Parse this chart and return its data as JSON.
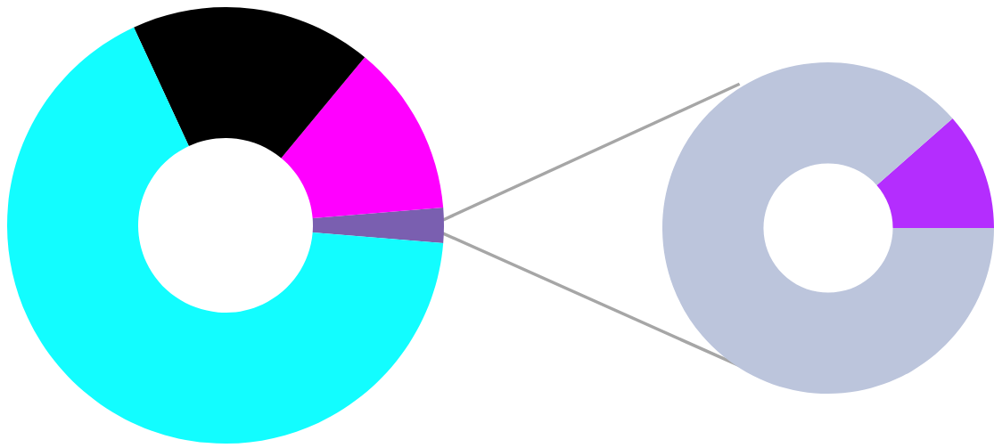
{
  "chart_data": [
    {
      "type": "donut",
      "categories": [
        null,
        null,
        null,
        null
      ],
      "values": [
        2.6,
        12.7,
        17.9,
        66.8
      ],
      "colors": [
        "#7a5fb0",
        "#ff00ff",
        "#000000",
        "#12fdff"
      ]
    },
    {
      "type": "donut",
      "categories": [
        null,
        null
      ],
      "values": [
        11.5,
        88.5
      ],
      "colors": [
        "#b42dfe",
        "#bcc5dc"
      ]
    }
  ]
}
